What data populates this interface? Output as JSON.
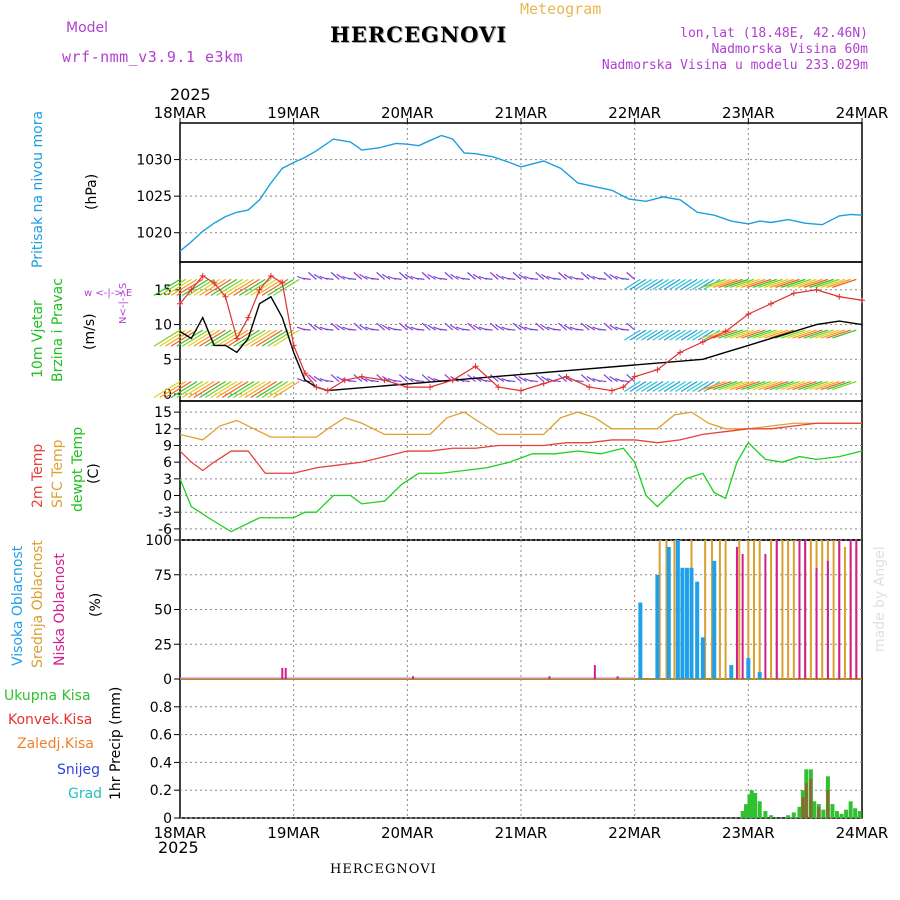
{
  "header": {
    "model_label": "Model",
    "model_name": "wrf-nmm_v3.9.1 e3km",
    "meteogram": "Meteogram",
    "station": "HERCEGNOVI",
    "lonlat": "lon,lat (18.48E, 42.46N)",
    "elevation": "Nadmorska Visina 60m",
    "model_elevation": "Nadmorska Visina u modelu 233.029m",
    "year": "2025",
    "footer_station": "HERCEGNOVI",
    "credit": "made by Angel"
  },
  "colors": {
    "pressure": "#1e9ee0",
    "temp2m": "#e8403a",
    "sfc": "#e0a030",
    "dewpt": "#20d020",
    "high_cloud": "#20a0e8",
    "mid_cloud": "#d8a030",
    "low_cloud": "#d02090",
    "total_precip": "#30c030",
    "conv_precip": "#e83030",
    "frozen": "#f08030",
    "snow": "#3040e0",
    "hail": "#20c0c0",
    "wind": "#e03030",
    "purple": "#b040d0"
  },
  "chart_data": [
    {
      "type": "line",
      "panel": "pressure",
      "ylabel_main": "Pritisak na nivou mora",
      "ylabel_unit": "(hPa)",
      "x_ticks": [
        "18MAR",
        "19MAR",
        "20MAR",
        "21MAR",
        "22MAR",
        "23MAR",
        "24MAR"
      ],
      "ylim": [
        1016,
        1035
      ],
      "y_ticks": [
        1020,
        1025,
        1030
      ],
      "series": [
        {
          "name": "SLP",
          "x": [
            0,
            0.08,
            0.2,
            0.3,
            0.4,
            0.5,
            0.6,
            0.7,
            0.8,
            0.9,
            1.0,
            1.1,
            1.2,
            1.35,
            1.5,
            1.6,
            1.75,
            1.9,
            2.0,
            2.1,
            2.2,
            2.3,
            2.4,
            2.5,
            2.6,
            2.75,
            2.9,
            3.0,
            3.1,
            3.2,
            3.35,
            3.5,
            3.65,
            3.8,
            3.95,
            4.1,
            4.25,
            4.4,
            4.55,
            4.7,
            4.85,
            5.0,
            5.1,
            5.2,
            5.35,
            5.5,
            5.65,
            5.8,
            5.9,
            6.0
          ],
          "values": [
            1017.5,
            1018.5,
            1020.2,
            1021.3,
            1022.2,
            1022.8,
            1023.1,
            1024.5,
            1026.8,
            1028.8,
            1029.6,
            1030.3,
            1031.2,
            1032.8,
            1032.4,
            1031.3,
            1031.6,
            1032.2,
            1032.1,
            1031.9,
            1032.6,
            1033.3,
            1032.8,
            1030.9,
            1030.8,
            1030.4,
            1029.6,
            1029.0,
            1029.4,
            1029.8,
            1028.8,
            1026.8,
            1026.3,
            1025.8,
            1024.6,
            1024.3,
            1024.9,
            1024.5,
            1022.8,
            1022.4,
            1021.6,
            1021.2,
            1021.6,
            1021.4,
            1021.8,
            1021.3,
            1021.1,
            1022.3,
            1022.5,
            1022.4
          ]
        }
      ]
    },
    {
      "type": "line",
      "panel": "wind",
      "ylabel_main": "10m Vjetar",
      "ylabel_sub": "Brzina i Pravac",
      "ylabel_unit": "(m/s)",
      "compass": "w <-|-> E",
      "compass_n": "N<-|->S",
      "ylim": [
        -1,
        19
      ],
      "y_ticks": [
        0,
        5,
        10,
        15
      ],
      "series": [
        {
          "name": "wind_speed_max",
          "x": [
            0,
            0.1,
            0.2,
            0.3,
            0.4,
            0.5,
            0.6,
            0.7,
            0.8,
            0.9,
            1.0,
            1.1,
            1.2,
            1.3,
            1.45,
            1.6,
            1.8,
            2.0,
            2.2,
            2.4,
            2.6,
            2.8,
            3.0,
            3.2,
            3.4,
            3.6,
            3.8,
            3.9,
            4.0,
            4.2,
            4.4,
            4.6,
            4.8,
            5.0,
            5.2,
            5.4,
            5.6,
            5.8,
            6.0
          ],
          "values": [
            13,
            15,
            17,
            16,
            14,
            8,
            11,
            15,
            17,
            16,
            7,
            3,
            1,
            0.5,
            2,
            2.5,
            2,
            1,
            1,
            2,
            4,
            1,
            0.5,
            1.5,
            2.5,
            1,
            0.5,
            1,
            2.5,
            3.5,
            6,
            7.5,
            9,
            11.5,
            13,
            14.5,
            15,
            14,
            13.5
          ]
        },
        {
          "name": "wind_speed_mean",
          "x": [
            0,
            0.1,
            0.2,
            0.3,
            0.4,
            0.5,
            0.6,
            0.7,
            0.8,
            0.9,
            1.0,
            1.1,
            1.2,
            1.3,
            4.6,
            4.8,
            5.0,
            5.2,
            5.4,
            5.6,
            5.8,
            6.0
          ],
          "values": [
            9,
            8,
            11,
            7,
            7,
            6,
            8,
            13,
            14,
            11,
            6,
            2,
            1,
            0.5,
            5,
            6,
            7,
            8,
            9,
            10,
            10.5,
            10
          ]
        }
      ]
    },
    {
      "type": "line",
      "panel": "temperature",
      "ylabel_a": "2m Temp",
      "ylabel_b": "SFC Temp",
      "ylabel_c": "dewpt Temp",
      "ylabel_unit": "(C)",
      "ylim": [
        -8,
        17
      ],
      "y_ticks": [
        -6,
        -3,
        0,
        3,
        6,
        9,
        12,
        15
      ],
      "series": [
        {
          "name": "2m Temp",
          "x": [
            0,
            0.1,
            0.2,
            0.3,
            0.45,
            0.6,
            0.75,
            0.9,
            1.0,
            1.2,
            1.4,
            1.6,
            1.8,
            2.0,
            2.2,
            2.4,
            2.6,
            2.8,
            3.0,
            3.2,
            3.4,
            3.6,
            3.8,
            4.0,
            4.2,
            4.4,
            4.6,
            4.8,
            5.0,
            5.2,
            5.4,
            5.6,
            5.8,
            6.0
          ],
          "values": [
            8,
            6,
            4.5,
            6,
            8,
            8,
            4,
            4,
            4,
            5,
            5.5,
            6,
            7,
            8,
            8,
            8.5,
            8.5,
            9,
            9,
            9,
            9.5,
            9.5,
            10,
            10,
            9.5,
            10,
            11,
            11.5,
            12,
            12,
            12.5,
            13,
            13,
            13
          ]
        },
        {
          "name": "SFC Temp",
          "x": [
            0,
            0.2,
            0.35,
            0.5,
            0.65,
            0.8,
            1.0,
            1.2,
            1.3,
            1.45,
            1.6,
            1.8,
            2.0,
            2.2,
            2.35,
            2.5,
            2.65,
            2.8,
            3.0,
            3.2,
            3.35,
            3.5,
            3.65,
            3.8,
            4.0,
            4.2,
            4.35,
            4.5,
            4.65,
            4.8,
            5.0,
            5.2,
            5.4,
            5.6,
            5.8,
            6.0
          ],
          "values": [
            11,
            10,
            12.5,
            13.5,
            12,
            10.5,
            10.5,
            10.5,
            12,
            14,
            13,
            11,
            11,
            11,
            14,
            15,
            13,
            11,
            11,
            11,
            14,
            15,
            14,
            12,
            12,
            12,
            14.5,
            15,
            13,
            12,
            12,
            12.5,
            13,
            13,
            13,
            13
          ]
        },
        {
          "name": "dewpt Temp",
          "x": [
            0,
            0.1,
            0.25,
            0.45,
            0.55,
            0.7,
            0.85,
            1.0,
            1.1,
            1.2,
            1.35,
            1.5,
            1.6,
            1.8,
            1.95,
            2.1,
            2.3,
            2.5,
            2.7,
            2.9,
            3.1,
            3.3,
            3.5,
            3.7,
            3.9,
            4.0,
            4.1,
            4.2,
            4.3,
            4.45,
            4.6,
            4.7,
            4.8,
            4.9,
            5.0,
            5.15,
            5.3,
            5.45,
            5.6,
            5.8,
            6.0
          ],
          "values": [
            3,
            -2,
            -4,
            -6.5,
            -5.5,
            -4,
            -4,
            -4,
            -3,
            -3,
            0,
            0,
            -1.5,
            -1,
            2,
            4,
            4,
            4.5,
            5,
            6,
            7.5,
            7.5,
            8,
            7.5,
            8.5,
            6,
            0,
            -2,
            0,
            3,
            4,
            0.5,
            -0.5,
            6,
            9.5,
            6.5,
            6,
            7,
            6.5,
            7,
            8
          ]
        }
      ]
    },
    {
      "type": "bar",
      "panel": "cloud",
      "ylabel_a": "Visoka Oblacnost",
      "ylabel_b": "Srednja Oblacnost",
      "ylabel_c": "Niska Oblacnost",
      "ylabel_unit": "(%)",
      "ylim": [
        0,
        100
      ],
      "y_ticks": [
        0,
        25,
        50,
        75,
        100
      ],
      "low_cloud_bars": {
        "x": [
          0.9,
          0.93,
          2.05,
          3.25,
          3.85,
          3.65
        ],
        "values": [
          8,
          8,
          2,
          2,
          2,
          10
        ]
      },
      "high_cloud_bars": {
        "x": [
          4.05,
          4.2,
          4.3,
          4.38,
          4.42,
          4.46,
          4.5,
          4.55,
          4.6,
          4.7,
          4.85,
          5.0,
          5.1
        ],
        "values": [
          55,
          75,
          95,
          100,
          80,
          80,
          80,
          70,
          30,
          85,
          10,
          15,
          5
        ]
      },
      "mid_cloud_bars": {
        "x": [
          4.22,
          4.28,
          4.35,
          4.5,
          4.62,
          4.68,
          4.75,
          4.8,
          4.92,
          5.0,
          5.05,
          5.1,
          5.2,
          5.25,
          5.3,
          5.35,
          5.4,
          5.5,
          5.55,
          5.6,
          5.65,
          5.7,
          5.75,
          5.8,
          5.85,
          5.9,
          5.95
        ],
        "values": [
          100,
          100,
          100,
          100,
          100,
          100,
          100,
          100,
          100,
          100,
          100,
          100,
          100,
          100,
          100,
          100,
          100,
          100,
          100,
          100,
          100,
          100,
          100,
          100,
          95,
          95,
          95
        ]
      },
      "low_cloud_tall": {
        "x": [
          4.9,
          4.95,
          5.15,
          5.25,
          5.45,
          5.5,
          5.6,
          5.7,
          5.8,
          5.9,
          5.95
        ],
        "values": [
          95,
          90,
          90,
          100,
          100,
          100,
          80,
          85,
          100,
          100,
          100
        ]
      }
    },
    {
      "type": "bar",
      "panel": "precip",
      "ylabel": "1hr Precip (mm)",
      "legend": [
        "Ukupna Kisa",
        "Konvek.Kisa",
        "Zaledj.Kisa",
        "Snijeg",
        "Grad"
      ],
      "ylim": [
        0,
        1.0
      ],
      "y_ticks": [
        0,
        0.2,
        0.4,
        0.6,
        0.8
      ],
      "total": {
        "x": [
          4.95,
          4.98,
          5.01,
          5.03,
          5.06,
          5.1,
          5.15,
          5.2,
          5.35,
          5.4,
          5.45,
          5.48,
          5.51,
          5.55,
          5.58,
          5.62,
          5.66,
          5.7,
          5.74,
          5.78,
          5.82,
          5.86,
          5.9,
          5.94,
          5.98
        ],
        "values": [
          0.05,
          0.1,
          0.17,
          0.2,
          0.18,
          0.12,
          0.05,
          0.02,
          0.02,
          0.04,
          0.08,
          0.2,
          0.35,
          0.35,
          0.12,
          0.1,
          0.06,
          0.3,
          0.1,
          0.05,
          0.03,
          0.06,
          0.12,
          0.07,
          0.05
        ]
      },
      "conv": {
        "x": [
          5.48,
          5.51,
          5.55,
          5.62,
          5.7
        ],
        "values": [
          0.15,
          0.25,
          0.28,
          0.08,
          0.2
        ]
      }
    }
  ]
}
